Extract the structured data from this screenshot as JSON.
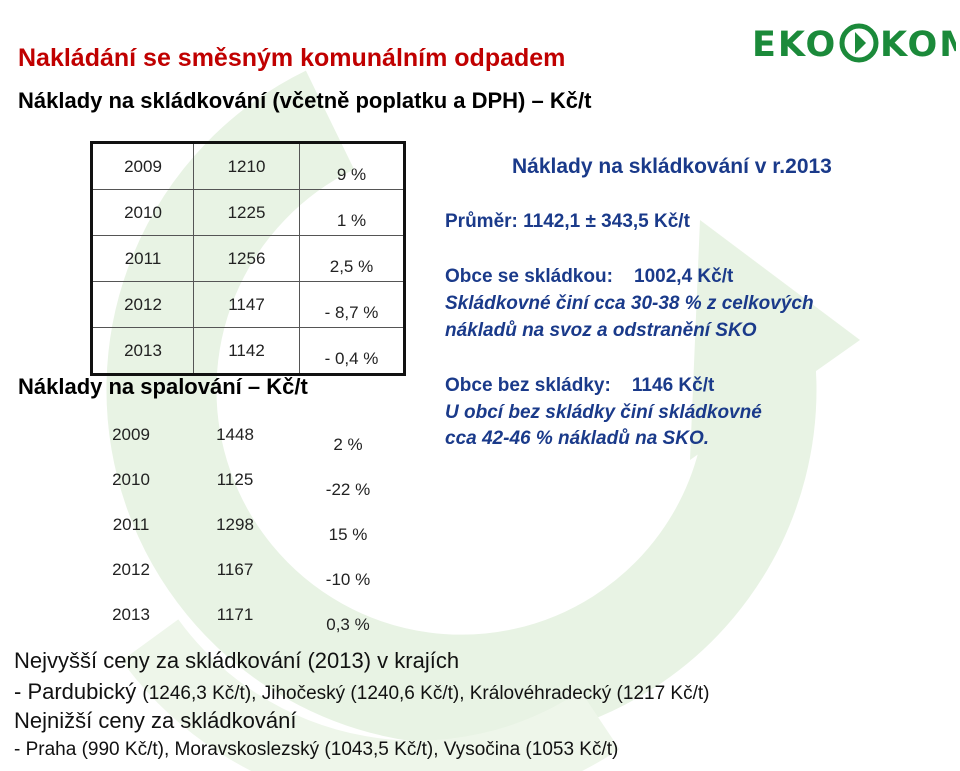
{
  "header": {
    "title": "Nakládání se směsným komunálním odpadem",
    "subtitle": "Náklady na skládkování (včetně poplatku a DPH) – Kč/t",
    "logo_text": "EKO KOM",
    "brand_color": "#1b8a3a"
  },
  "landfill_table": {
    "rows": [
      {
        "year": "2009",
        "value": "1210",
        "change": "9 %"
      },
      {
        "year": "2010",
        "value": "1225",
        "change": "1 %"
      },
      {
        "year": "2011",
        "value": "1256",
        "change": "2,5 %"
      },
      {
        "year": "2012",
        "value": "1147",
        "change": "- 8,7 %"
      },
      {
        "year": "2013",
        "value": "1142",
        "change": "- 0,4 %"
      }
    ]
  },
  "incineration": {
    "heading": "Náklady na spalování – Kč/t",
    "rows": [
      {
        "year": "2009",
        "value": "1448",
        "change": "2 %"
      },
      {
        "year": "2010",
        "value": "1125",
        "change": "-22 %"
      },
      {
        "year": "2011",
        "value": "1298",
        "change": "15 %"
      },
      {
        "year": "2012",
        "value": "1167",
        "change": "-10 %"
      },
      {
        "year": "2013",
        "value": "1171",
        "change": "0,3 %"
      }
    ]
  },
  "info": {
    "title": "Náklady na skládkování v r.2013",
    "average": "Průměr: 1142,1 ± 343,5 Kč/t",
    "with_landfill": "Obce se skládkou:    1002,4 Kč/t",
    "with_landfill_note_1": "Skládkovné činí cca 30-38 % z celkových",
    "with_landfill_note_2": "nákladů na svoz a odstranění SKO",
    "without_landfill": "Obce bez skládky:    1146 Kč/t",
    "without_landfill_note_1": "U obcí bez skládky činí skládkovné",
    "without_landfill_note_2": "cca 42-46 % nákladů na SKO.",
    "text_color": "#1a3a8a"
  },
  "bottom": {
    "highest_heading": "Nejvyšší ceny za skládkování (2013) v krajích",
    "highest_prefix": "- Pardubický ",
    "highest_detail": "(1246,3 Kč/t), Jihočeský (1240,6 Kč/t), Královéhradecký (1217 Kč/t)",
    "lowest_heading": "Nejnižší ceny za skládkování",
    "lowest_detail": "- Praha (990 Kč/t), Moravskoslezský (1043,5 Kč/t), Vysočina (1053 Kč/t)"
  },
  "accent_color": "#c00000"
}
